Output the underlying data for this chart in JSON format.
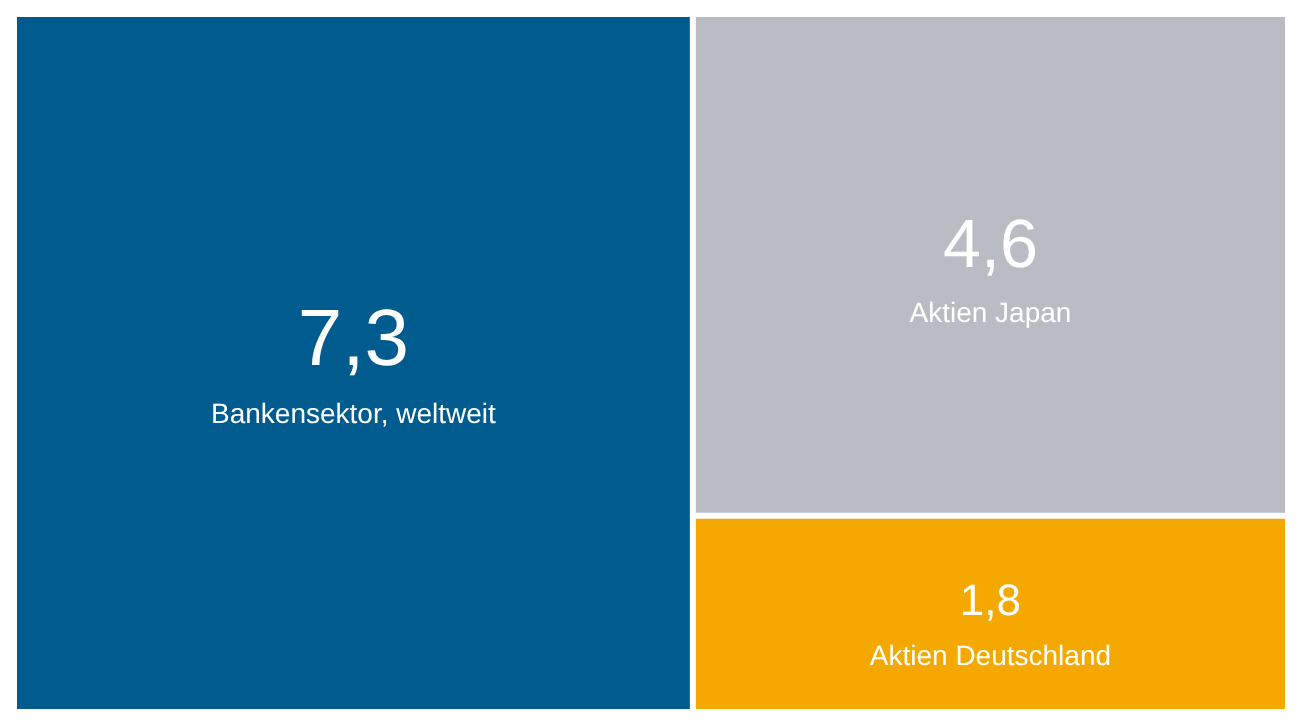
{
  "chart_data": {
    "type": "other",
    "categories": [
      "Bankensektor, weltweit",
      "Aktien Japan",
      "Aktien Deutschland"
    ],
    "values": [
      7.3,
      4.6,
      1.8
    ],
    "value_labels": [
      "7,3",
      "4,6",
      "1,8"
    ],
    "colors": [
      "#005b8f",
      "#b9bcc2",
      "#f5a800"
    ]
  }
}
